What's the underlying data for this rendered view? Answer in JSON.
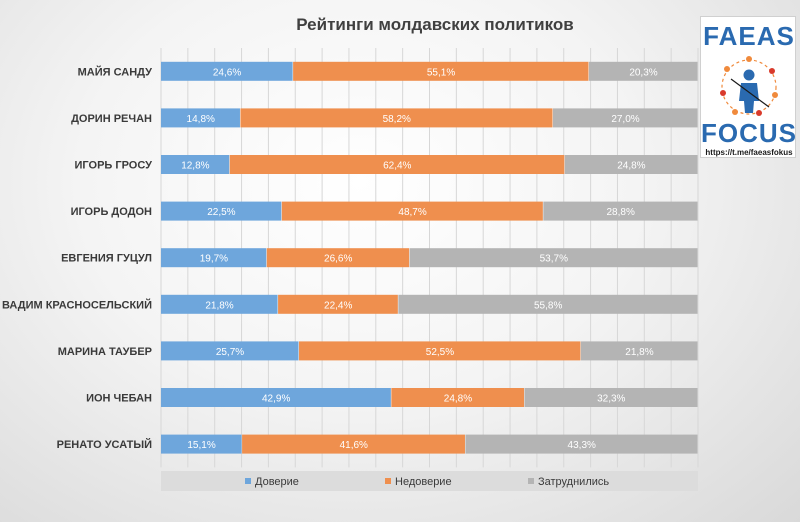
{
  "chart_data": {
    "type": "bar",
    "orientation": "horizontal",
    "stacked": true,
    "percent_stacked": true,
    "title": "Рейтинги молдавских политиков",
    "categories": [
      "МАЙЯ САНДУ",
      "ДОРИН РЕЧАН",
      "ИГОРЬ ГРОСУ",
      "ИГОРЬ ДОДОН",
      "ЕВГЕНИЯ ГУЦУЛ",
      "ВАДИМ КРАСНОСЕЛЬСКИЙ",
      "МАРИНА ТАУБЕР",
      "ИОН ЧЕБАН",
      "РЕНАТО УСАТЫЙ"
    ],
    "series": [
      {
        "name": "Доверие",
        "color": "#6ea6dc",
        "values": [
          24.6,
          14.8,
          12.8,
          22.5,
          19.7,
          21.8,
          25.7,
          42.9,
          15.1
        ],
        "labels": [
          "24,6%",
          "14,8%",
          "12,8%",
          "22,5%",
          "19,7%",
          "21,8%",
          "25,7%",
          "42,9%",
          "15,1%"
        ]
      },
      {
        "name": "Недоверие",
        "color": "#ef8f4e",
        "values": [
          55.1,
          58.2,
          62.4,
          48.7,
          26.6,
          22.4,
          52.5,
          24.8,
          41.6
        ],
        "labels": [
          "55,1%",
          "58,2%",
          "62,4%",
          "48,7%",
          "26,6%",
          "22,4%",
          "52,5%",
          "24,8%",
          "41,6%"
        ]
      },
      {
        "name": "Затруднились",
        "color": "#b4b4b4",
        "values": [
          20.3,
          27.0,
          24.8,
          28.8,
          53.7,
          55.8,
          21.8,
          32.3,
          43.3
        ],
        "labels": [
          "20,3%",
          "27,0%",
          "24,8%",
          "28,8%",
          "53,7%",
          "55,8%",
          "21,8%",
          "32,3%",
          "43,3%"
        ]
      }
    ],
    "xlim": [
      0,
      100
    ],
    "grid": true,
    "legend_position": "bottom"
  },
  "logo": {
    "word_top": "FAEAS",
    "word_bottom": "FOCUS",
    "link": "https://t.me/faeasfokus",
    "colors": {
      "blue": "#2a6ab0",
      "orange": "#f08a3c",
      "red": "#d93a2b"
    }
  }
}
